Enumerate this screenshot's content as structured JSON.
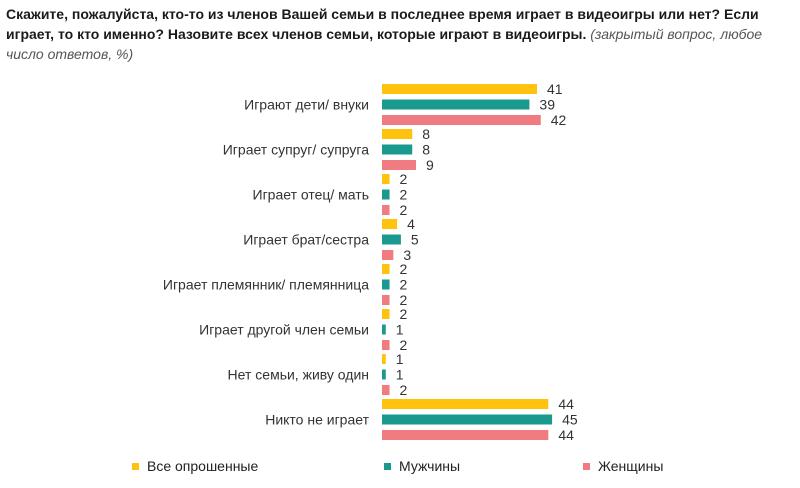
{
  "title": {
    "question": "Скажите, пожалуйста, кто-то из членов Вашей семьи в последнее время играет в видеоигры или нет? Если играет, то кто именно? Назовите всех членов семьи, которые играют в видеоигры.",
    "note": "(закрытый вопрос, любое число ответов, %)"
  },
  "chart_data": {
    "type": "bar",
    "orientation": "horizontal",
    "categories": [
      "Играют дети/ внуки",
      "Играет супруг/ супруга",
      "Играет отец/ мать",
      "Играет брат/сестра",
      "Играет племянник/ племянница",
      "Играет другой член семьи",
      "Нет семьи, живу один",
      "Никто не играет"
    ],
    "series": [
      {
        "name": "Все опрошенные",
        "color": "#FFC20E",
        "values": [
          41,
          8,
          2,
          4,
          2,
          2,
          1,
          44
        ]
      },
      {
        "name": "Мужчины",
        "color": "#1A9A8F",
        "values": [
          39,
          8,
          2,
          5,
          2,
          1,
          1,
          45
        ]
      },
      {
        "name": "Женщины",
        "color": "#F07C82",
        "values": [
          42,
          9,
          2,
          3,
          2,
          2,
          2,
          44
        ]
      }
    ],
    "xlim": [
      0,
      45
    ],
    "grid": false,
    "legend_position": "bottom"
  }
}
